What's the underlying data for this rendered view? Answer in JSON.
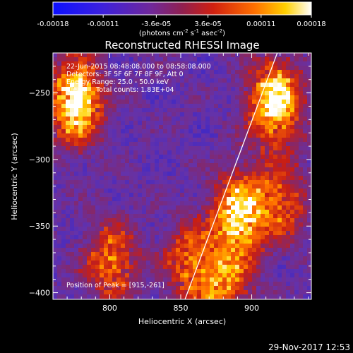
{
  "colorbar": {
    "tick_labels": [
      "-0.00018",
      "-0.00011",
      "-3.6e-05",
      "3.6e-05",
      "0.00011",
      "0.00018"
    ],
    "tick_values": [
      -0.00018,
      -0.00011,
      -3.6e-05,
      3.6e-05,
      0.00011,
      0.00018
    ],
    "range": [
      -0.00018,
      0.00018
    ],
    "units_line1": "(photons cm",
    "units_sup1": "-2",
    "units_mid": " s",
    "units_sup2": "-1",
    "units_end": " asec",
    "units_sup3": "-2",
    "units_close": ")",
    "colors": [
      "#1010ff",
      "#6030c0",
      "#8a2a7a",
      "#c02020",
      "#ff6000",
      "#ffd000",
      "#ffffff"
    ]
  },
  "chart_data": {
    "type": "heatmap",
    "title": "Reconstructed RHESSI Image",
    "xlabel": "Heliocentric X (arcsec)",
    "ylabel": "Heliocentric Y (arcsec)",
    "xlim": [
      760,
      942
    ],
    "ylim": [
      -405,
      -220
    ],
    "x_ticks": [
      800,
      850,
      900
    ],
    "y_ticks": [
      -400,
      -350,
      -300,
      -250
    ],
    "x_tick_labels": [
      "800",
      "850",
      "900"
    ],
    "y_tick_labels": [
      "−400",
      "−350",
      "−300",
      "−250"
    ],
    "annotations": [
      "22-Jun-2015 08:48:08.000 to 08:58:08.000",
      "Detectors: 3F 5F 6F 7F 8F 9F, Att 0",
      "Energy Range: 25.0 - 50.0 keV",
      "Clean     Total counts: 1.83E+04"
    ],
    "peak_label": "Position of Peak = [915,-261]",
    "peak": [
      915,
      -261
    ],
    "bright_regions": [
      {
        "x": 775,
        "y": -255,
        "strength": 1.0
      },
      {
        "x": 915,
        "y": -255,
        "strength": 1.0
      },
      {
        "x": 890,
        "y": -340,
        "strength": 0.95
      },
      {
        "x": 800,
        "y": -375,
        "strength": 0.6
      },
      {
        "x": 855,
        "y": -375,
        "strength": 0.55
      },
      {
        "x": 920,
        "y": -330,
        "strength": 0.5
      },
      {
        "x": 880,
        "y": -395,
        "strength": 0.6
      }
    ],
    "limb_line": [
      [
        853,
        -405
      ],
      [
        918,
        -220
      ]
    ]
  },
  "footer": {
    "timestamp": "29-Nov-2017 12:53"
  }
}
